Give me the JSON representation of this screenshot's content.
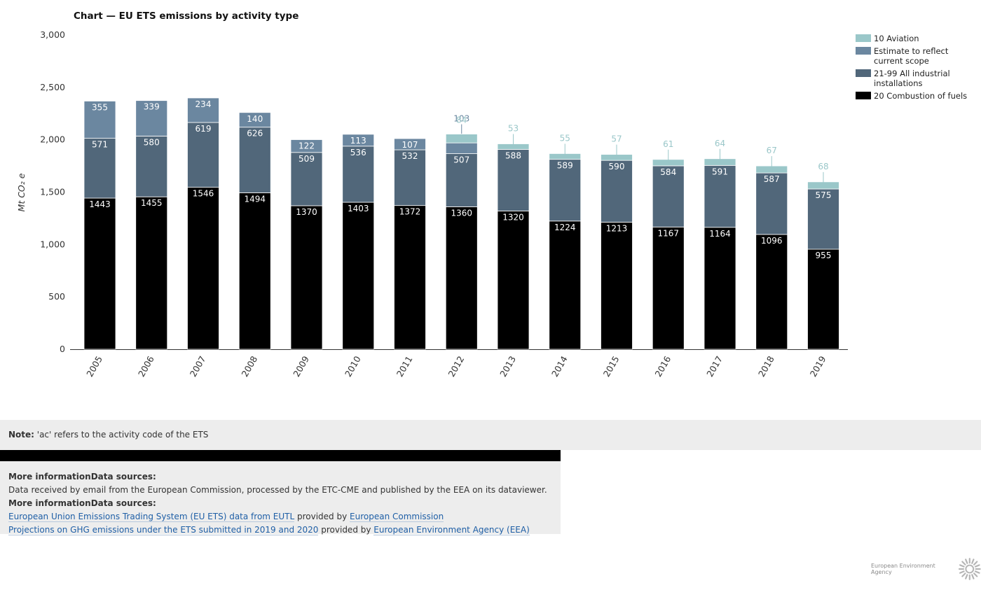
{
  "chart_data": {
    "type": "bar",
    "stacked": true,
    "title": "Chart — EU ETS emissions by activity type",
    "ylabel": "Mt CO₂ e",
    "ylim": [
      0,
      3000
    ],
    "yticks": [
      0,
      500,
      1000,
      1500,
      2000,
      2500,
      3000
    ],
    "ytick_labels": [
      "0",
      "500",
      "1,000",
      "1,500",
      "2,000",
      "2,500",
      "3,000"
    ],
    "categories": [
      "2005",
      "2006",
      "2007",
      "2008",
      "2009",
      "2010",
      "2011",
      "2012",
      "2013",
      "2014",
      "2015",
      "2016",
      "2017",
      "2018",
      "2019"
    ],
    "legend_position": "top-right",
    "series": [
      {
        "name": "20 Combustion of fuels",
        "color": "#000000",
        "values": [
          1443,
          1455,
          1546,
          1494,
          1370,
          1403,
          1372,
          1360,
          1320,
          1224,
          1213,
          1167,
          1164,
          1096,
          955
        ]
      },
      {
        "name": "21-99 All industrial installations",
        "color": "#51677a",
        "values": [
          571,
          580,
          619,
          626,
          509,
          536,
          532,
          507,
          588,
          589,
          590,
          584,
          591,
          587,
          575
        ]
      },
      {
        "name": "Estimate to reflect current scope",
        "color": "#6b87a0",
        "values": [
          355,
          339,
          234,
          140,
          122,
          113,
          107,
          103,
          null,
          null,
          null,
          null,
          null,
          null,
          null
        ]
      },
      {
        "name": "10 Aviation",
        "color": "#9ac7c9",
        "values": [
          null,
          null,
          null,
          null,
          null,
          null,
          null,
          84,
          53,
          55,
          57,
          61,
          64,
          67,
          68
        ]
      }
    ],
    "legend_order": [
      "10 Aviation",
      "Estimate to reflect current scope",
      "21-99 All industrial installations",
      "20 Combustion of fuels"
    ],
    "legend_lines": {
      "10 Aviation": [
        "10 Aviation"
      ],
      "Estimate to reflect current scope": [
        "Estimate to reflect",
        "current scope"
      ],
      "21-99 All industrial installations": [
        "21-99 All industrial",
        "installations"
      ],
      "20 Combustion of fuels": [
        "20 Combustion of fuels"
      ]
    }
  },
  "note": {
    "label": "Note:",
    "text": " 'ac' refers to the activity code of the ETS"
  },
  "info": {
    "heading1": "More informationData sources:",
    "data_received": "Data received by email from the European Commission, processed by the ETC-CME and published by the EEA on its dataviewer.",
    "heading2": "More informationData sources:",
    "source1_link": "European Union Emissions Trading System (EU ETS) data from EUTL",
    "provided_by": " provided by ",
    "source1_provider": "European Commission",
    "source2_link": "Projections on GHG emissions under the ETS submitted in 2019 and 2020",
    "source2_provider": "European Environment Agency (EEA)"
  },
  "footer": {
    "agency": "European Environment Agency",
    "logo_icon": "eea-sun-logo-icon"
  }
}
